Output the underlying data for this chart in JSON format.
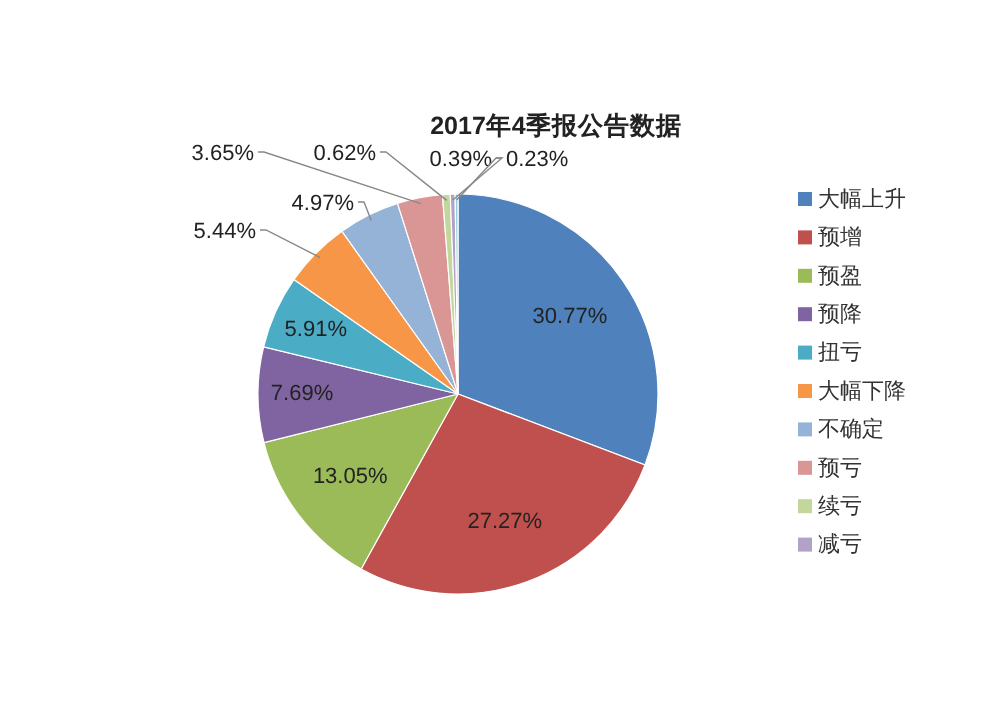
{
  "chart_data": {
    "type": "pie",
    "title": "2017年4季报公告数据",
    "categories": [
      "大幅上升",
      "预增",
      "预盈",
      "预降",
      "扭亏",
      "大幅下降",
      "不确定",
      "预亏",
      "续亏",
      "减亏",
      null
    ],
    "values": [
      30.77,
      27.27,
      13.05,
      7.69,
      5.91,
      5.44,
      4.97,
      3.65,
      0.62,
      0.39,
      0.23
    ],
    "colors": [
      "#4f81bd",
      "#c0504d",
      "#9bbb59",
      "#8064a2",
      "#4bacc6",
      "#f79646",
      "#95b3d7",
      "#d99694",
      "#c3d69b",
      "#b3a2c7",
      "#93cddd"
    ],
    "value_labels": [
      "30.77%",
      "27.27%",
      "13.05%",
      "7.69%",
      "5.91%",
      "5.44%",
      "4.97%",
      "3.65%",
      "0.62%",
      "0.39%",
      "0.23%"
    ],
    "legend": "right"
  }
}
